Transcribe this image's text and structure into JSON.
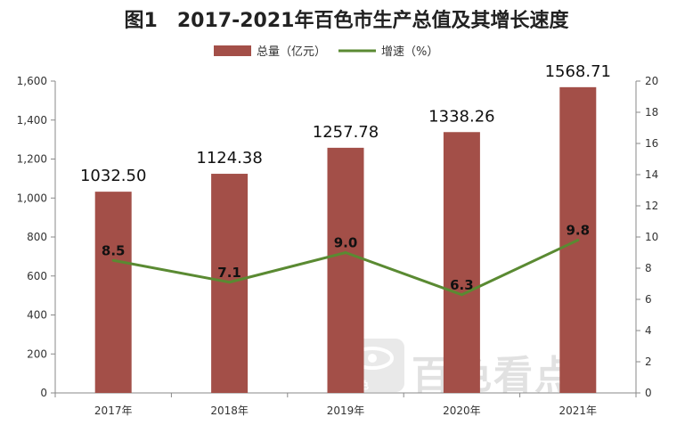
{
  "chart_data": {
    "type": "bar",
    "title": "图1　2017-2021年百色市生产总值及其增长速度",
    "categories": [
      "2017年",
      "2018年",
      "2019年",
      "2020年",
      "2021年"
    ],
    "series": [
      {
        "name": "总量（亿元）",
        "type": "bar",
        "axis": "left",
        "values": [
          1032.5,
          1124.38,
          1257.78,
          1338.26,
          1568.71
        ],
        "labels": [
          "1032.50",
          "1124.38",
          "1257.78",
          "1338.26",
          "1568.71"
        ]
      },
      {
        "name": "增速（%）",
        "type": "line",
        "axis": "right",
        "values": [
          8.5,
          7.1,
          9.0,
          6.3,
          9.8
        ],
        "labels": [
          "8.5",
          "7.1",
          "9.0",
          "6.3",
          "9.8"
        ]
      }
    ],
    "y_left": {
      "ylim": [
        0,
        1600
      ],
      "ticks": [
        "0",
        "200",
        "400",
        "600",
        "800",
        "1,000",
        "1,200",
        "1,400",
        "1,600"
      ]
    },
    "y_right": {
      "ylim": [
        0,
        20
      ],
      "ticks": [
        "0",
        "2",
        "4",
        "6",
        "8",
        "10",
        "12",
        "14",
        "16",
        "18",
        "20"
      ]
    },
    "legend_position": "top-center",
    "grid": false
  },
  "colors": {
    "bar": "#a34f48",
    "line": "#5a8a32",
    "axis": "#888888"
  },
  "watermark": {
    "text": "百色看点",
    "small": "百色",
    "icon": "watermark-logo-icon"
  }
}
